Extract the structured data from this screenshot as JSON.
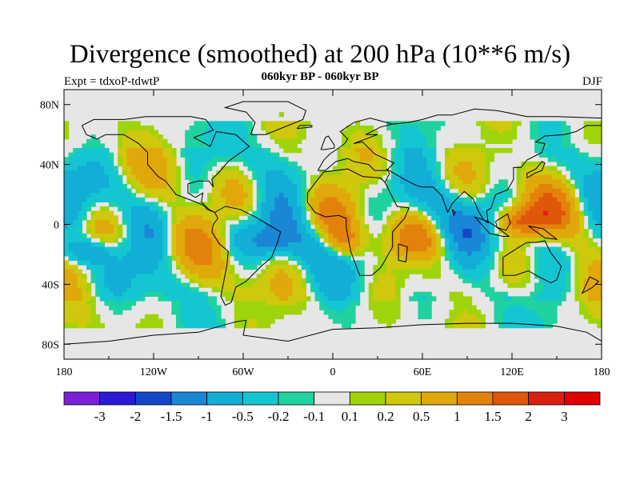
{
  "title": "Divergence (smoothed) at 200 hPa (10**6 m/s)",
  "subtitle": "060kyr BP - 060kyr BP",
  "left_label": "Expt = tdxoP-tdwtP",
  "right_label": "DJF",
  "chart_data": {
    "type": "heatmap",
    "x_ticks": [
      "180",
      "120W",
      "60W",
      "0",
      "60E",
      "120E",
      "180"
    ],
    "x_tick_values": [
      -180,
      -120,
      -60,
      0,
      60,
      120,
      180
    ],
    "y_ticks": [
      "80N",
      "40N",
      "0",
      "40S",
      "80S"
    ],
    "y_tick_values": [
      80,
      40,
      0,
      -40,
      -80
    ],
    "xlim": [
      -180,
      180
    ],
    "ylim": [
      -90,
      90
    ],
    "colorbar": {
      "labels": [
        "-3",
        "-2",
        "-1.5",
        "-1",
        "-0.5",
        "-0.2",
        "-0.1",
        "0.1",
        "0.2",
        "0.5",
        "1",
        "1.5",
        "2",
        "3"
      ],
      "colors": [
        "#7a1fd8",
        "#2b1ad6",
        "#1446c8",
        "#1a86d6",
        "#12aed6",
        "#14c6d2",
        "#1fd2a0",
        "#e6e6e6",
        "#9fd40a",
        "#cfc80c",
        "#e0a80a",
        "#e3820a",
        "#e0560a",
        "#d82010",
        "#e00000"
      ]
    },
    "background_color": "#e6e6e6"
  }
}
